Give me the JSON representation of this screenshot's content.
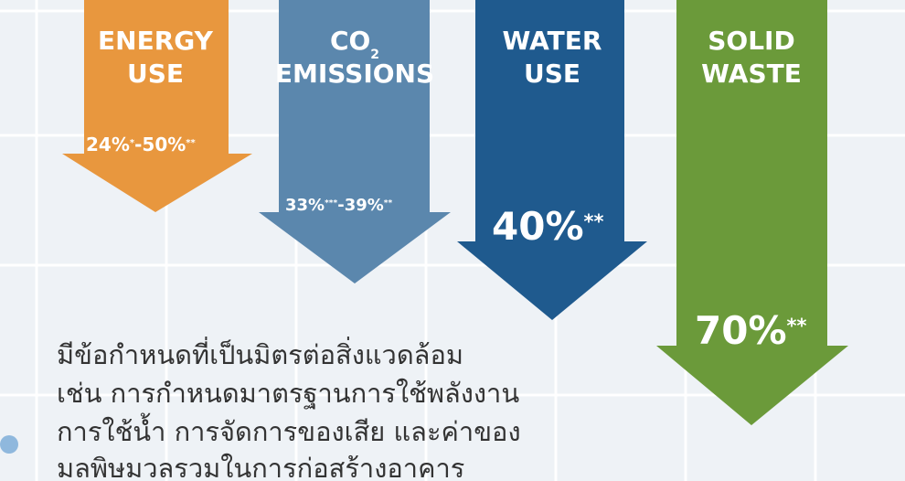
{
  "arrows": [
    {
      "label": [
        "ENERGY",
        "USE"
      ],
      "value": [
        {
          "text": "24%"
        },
        {
          "sup": "*"
        },
        {
          "text": "-50%"
        },
        {
          "sup": "**"
        }
      ]
    },
    {
      "label": [
        "CO",
        "EMISSIONS"
      ],
      "subscript": "2",
      "value": [
        {
          "text": "33%"
        },
        {
          "sup": "***"
        },
        {
          "text": "-39%"
        },
        {
          "sup": "**"
        }
      ]
    },
    {
      "label": [
        "WATER",
        "USE"
      ],
      "value": [
        {
          "text": "40%"
        },
        {
          "sup": "**"
        }
      ]
    },
    {
      "label": [
        "SOLID",
        "WASTE"
      ],
      "value": [
        {
          "text": "70%"
        },
        {
          "sup": "**"
        }
      ]
    }
  ],
  "paragraph": [
    "มีข้อกำหนดที่เป็นมิตรต่อสิ่งแวดล้อม",
    "เช่น การกำหนดมาตรฐานการใช้พลังงาน",
    "การใช้น้ำ การจัดการของเสีย และค่าของ",
    "มลพิษมวลรวมในการก่อสร้างอาคาร"
  ]
}
